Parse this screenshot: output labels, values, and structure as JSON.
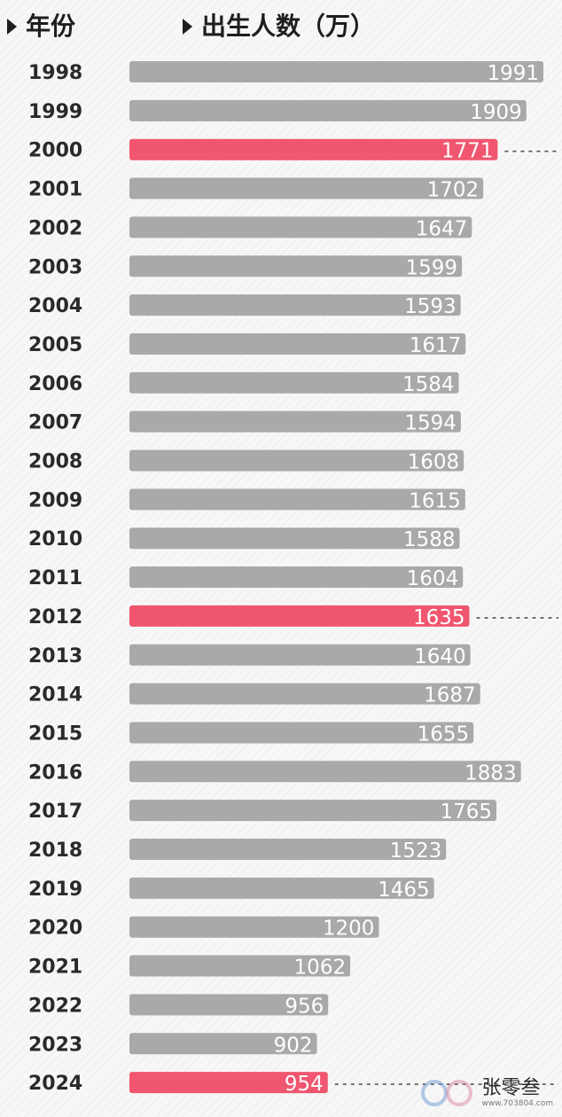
{
  "header": {
    "year_label": "年份",
    "value_label": "出生人数（万）"
  },
  "chart_data": {
    "type": "bar",
    "orientation": "horizontal",
    "categories": [
      "1998",
      "1999",
      "2000",
      "2001",
      "2002",
      "2003",
      "2004",
      "2005",
      "2006",
      "2007",
      "2008",
      "2009",
      "2010",
      "2011",
      "2012",
      "2013",
      "2014",
      "2015",
      "2016",
      "2017",
      "2018",
      "2019",
      "2020",
      "2021",
      "2022",
      "2023",
      "2024"
    ],
    "values": [
      1991,
      1909,
      1771,
      1702,
      1647,
      1599,
      1593,
      1617,
      1584,
      1594,
      1608,
      1615,
      1588,
      1604,
      1635,
      1640,
      1687,
      1655,
      1883,
      1765,
      1523,
      1465,
      1200,
      1062,
      956,
      902,
      954
    ],
    "highlighted": [
      "2000",
      "2012",
      "2024"
    ],
    "xlim": [
      0,
      1991
    ],
    "colors": {
      "bar": "#a9a9a9",
      "highlight": "#f0566f",
      "label": "#ffffff",
      "dotted_line": "#555555"
    }
  },
  "watermark": {
    "brand": "张零叁",
    "url": "www.703804.com"
  }
}
